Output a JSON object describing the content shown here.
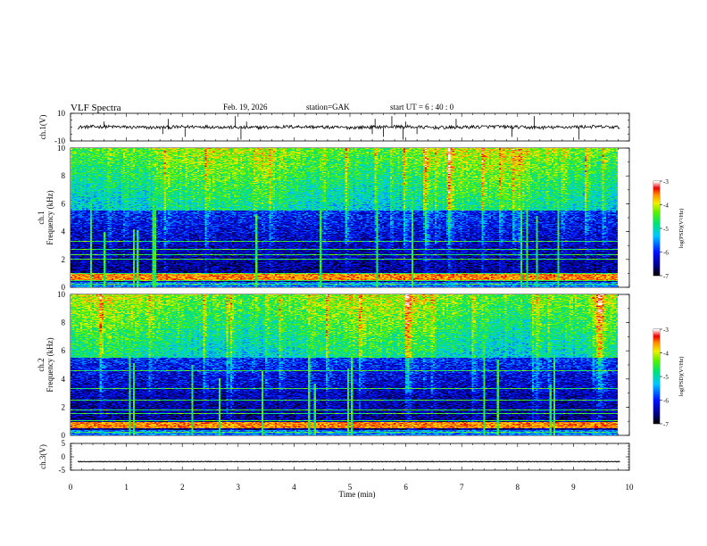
{
  "header": {
    "title": "VLF  Spectra",
    "date": "Feb. 19, 2026",
    "station": "station=GAK",
    "start_ut": "start  UT  =   6  : 40 : 0"
  },
  "chart_data": [
    {
      "type": "line",
      "name": "ch.1 waveform",
      "ylabel": "ch.1(V)",
      "ylim": [
        -10,
        10
      ],
      "y_ticks": [
        "10",
        "-10"
      ],
      "xlim": [
        0,
        10
      ],
      "baseline": 0,
      "noise_amplitude": 1.2,
      "spikes_min": [
        0.6,
        1.65,
        1.75,
        2.05,
        2.95,
        3.05,
        3.15,
        5.4,
        5.45,
        5.6,
        5.75,
        5.95,
        6.0,
        6.2,
        6.9,
        7.9,
        8.3,
        9.1
      ]
    },
    {
      "type": "heatmap",
      "name": "ch.1 spectrogram",
      "ylabel_line1": "ch.1",
      "ylabel_line2": "Frequency (kHz)",
      "ylim": [
        0,
        10
      ],
      "y_ticks": [
        "0",
        "2",
        "4",
        "6",
        "8",
        "10"
      ],
      "xlim": [
        0,
        9.83
      ],
      "colorbar_label": "log(PSD)(V²/Hz)",
      "colorbar_range": [
        -7,
        -3
      ],
      "colorbar_ticks": [
        "-3",
        "-4",
        "-5",
        "-6",
        "-7"
      ],
      "narrowband_lines_khz": [
        0.2,
        0.45,
        0.7,
        0.85,
        1.0,
        2.0,
        2.3,
        2.7,
        3.3
      ]
    },
    {
      "type": "heatmap",
      "name": "ch.2 spectrogram",
      "ylabel_line1": "ch.2",
      "ylabel_line2": "Frequency (kHz)",
      "ylim": [
        0,
        10
      ],
      "y_ticks": [
        "0",
        "2",
        "4",
        "6",
        "8",
        "10"
      ],
      "xlim": [
        0,
        9.83
      ],
      "colorbar_label": "log(PSD)(V²/Hz)",
      "colorbar_range": [
        -7,
        -3
      ],
      "colorbar_ticks": [
        "-3",
        "-4",
        "-5",
        "-6",
        "-7"
      ],
      "narrowband_lines_khz": [
        0.2,
        0.5,
        1.0,
        1.5,
        1.8,
        2.5,
        3.3,
        4.6
      ]
    },
    {
      "type": "line",
      "name": "ch.3 waveform",
      "ylabel": "ch.3(V)",
      "ylim": [
        -5,
        5
      ],
      "y_ticks": [
        "5",
        "0",
        "-5"
      ],
      "xlim": [
        0,
        10
      ],
      "baseline": -1.8,
      "noise_amplitude": 0.2
    }
  ],
  "xaxis": {
    "label": "Time  (min)",
    "ticks": [
      "0",
      "1",
      "2",
      "3",
      "4",
      "5",
      "6",
      "7",
      "8",
      "9",
      "10"
    ],
    "range": [
      0,
      10
    ]
  }
}
